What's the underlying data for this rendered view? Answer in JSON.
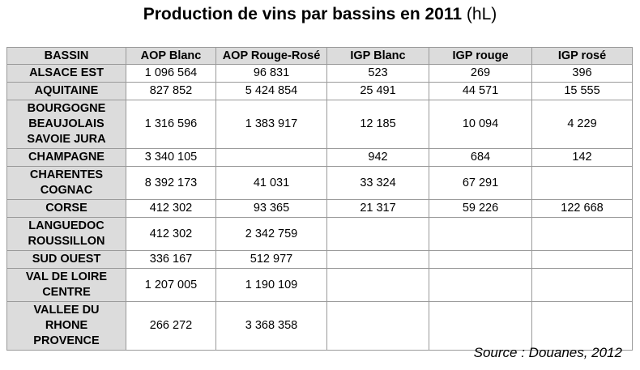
{
  "title": {
    "main": "Production de vins par bassins en 2011",
    "unit": "(hL)"
  },
  "source": "Source : Douanes, 2012",
  "chart_data": {
    "type": "table",
    "columns": [
      "BASSIN",
      "AOP Blanc",
      "AOP Rouge-Rosé",
      "IGP Blanc",
      "IGP rouge",
      "IGP rosé"
    ],
    "rows": [
      {
        "bassin": "ALSACE EST",
        "values": [
          "1 096 564",
          "96 831",
          "523",
          "269",
          "396"
        ]
      },
      {
        "bassin": "AQUITAINE",
        "values": [
          "827 852",
          "5 424 854",
          "25 491",
          "44 571",
          "15 555"
        ]
      },
      {
        "bassin": "BOURGOGNE BEAUJOLAIS SAVOIE JURA",
        "values": [
          "1 316 596",
          "1 383 917",
          "12 185",
          "10 094",
          "4 229"
        ]
      },
      {
        "bassin": "CHAMPAGNE",
        "values": [
          "3 340 105",
          "",
          "942",
          "684",
          "142"
        ]
      },
      {
        "bassin": "CHARENTES COGNAC",
        "values": [
          "8 392 173",
          "41 031",
          "33 324",
          "67 291",
          ""
        ]
      },
      {
        "bassin": "CORSE",
        "values": [
          "412 302",
          "93 365",
          "21 317",
          "59 226",
          "122 668"
        ]
      },
      {
        "bassin": "LANGUEDOC ROUSSILLON",
        "values": [
          "412 302",
          "2 342 759",
          "",
          "",
          ""
        ]
      },
      {
        "bassin": "SUD OUEST",
        "values": [
          "336 167",
          "512 977",
          "",
          "",
          ""
        ]
      },
      {
        "bassin": "VAL DE LOIRE CENTRE",
        "values": [
          "1 207 005",
          "1 190 109",
          "",
          "",
          ""
        ]
      },
      {
        "bassin": "VALLEE DU RHONE PROVENCE",
        "values": [
          "266 272",
          "3 368 358",
          "",
          "",
          ""
        ]
      }
    ]
  }
}
